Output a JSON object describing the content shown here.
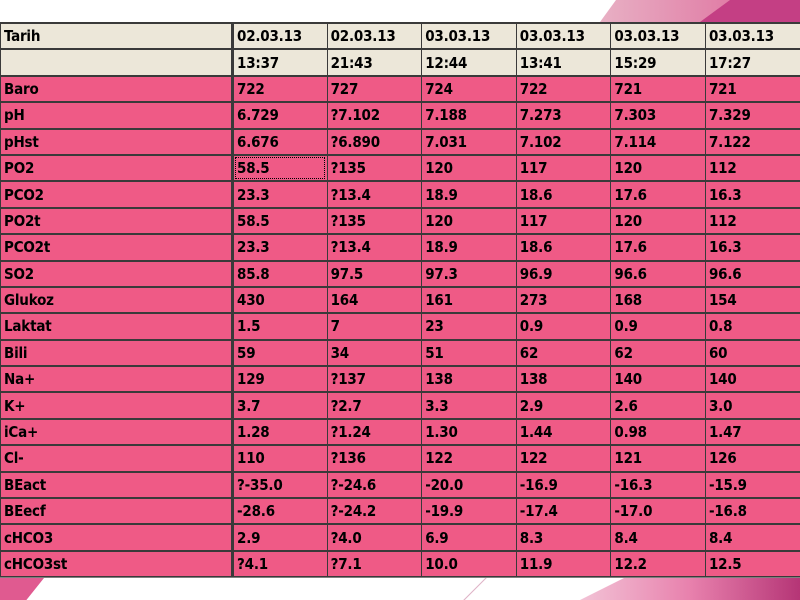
{
  "table": {
    "header": {
      "label": "Tarih",
      "dates": [
        "02.03.13",
        "02.03.13",
        "03.03.13",
        "03.03.13",
        "03.03.13",
        "03.03.13"
      ],
      "times": [
        "13:37",
        "21:43",
        "12:44",
        "13:41",
        "15:29",
        "17:27"
      ]
    },
    "rows": [
      {
        "label": "Baro",
        "values": [
          "722",
          "727",
          "724",
          "722",
          "721",
          "721"
        ]
      },
      {
        "label": "pH",
        "values": [
          "6.729",
          "?7.102",
          "7.188",
          "7.273",
          "7.303",
          "7.329"
        ]
      },
      {
        "label": "pHst",
        "values": [
          "6.676",
          "?6.890",
          "7.031",
          "7.102",
          "7.114",
          "7.122"
        ]
      },
      {
        "label": "PO2",
        "values": [
          "58.5",
          "?135",
          "120",
          "117",
          "120",
          "112"
        ]
      },
      {
        "label": "PCO2",
        "values": [
          "23.3",
          "?13.4",
          "18.9",
          "18.6",
          "17.6",
          "16.3"
        ]
      },
      {
        "label": "PO2t",
        "values": [
          "58.5",
          "?135",
          "120",
          "117",
          "120",
          "112"
        ]
      },
      {
        "label": "PCO2t",
        "values": [
          "23.3",
          "?13.4",
          "18.9",
          "18.6",
          "17.6",
          "16.3"
        ]
      },
      {
        "label": "SO2",
        "values": [
          "85.8",
          "97.5",
          "97.3",
          "96.9",
          "96.6",
          "96.6"
        ]
      },
      {
        "label": "Glukoz",
        "values": [
          "430",
          "164",
          "161",
          "273",
          "168",
          "154"
        ]
      },
      {
        "label": "Laktat",
        "values": [
          "1.5",
          "7",
          "23",
          "0.9",
          "0.9",
          "0.8"
        ]
      },
      {
        "label": "Bili",
        "values": [
          "59",
          "34",
          "51",
          "62",
          "62",
          "60"
        ]
      },
      {
        "label": "Na+",
        "values": [
          "129",
          "?137",
          "138",
          "138",
          "140",
          "140"
        ]
      },
      {
        "label": "K+",
        "values": [
          "3.7",
          "?2.7",
          "3.3",
          "2.9",
          "2.6",
          "3.0"
        ]
      },
      {
        "label": "iCa+",
        "values": [
          "1.28",
          "?1.24",
          "1.30",
          "1.44",
          "0.98",
          "1.47"
        ]
      },
      {
        "label": "Cl-",
        "values": [
          "110",
          "?136",
          "122",
          "122",
          "121",
          "126"
        ]
      },
      {
        "label": "BEact",
        "values": [
          "?-35.0",
          "?-24.6",
          "-20.0",
          "-16.9",
          "-16.3",
          "-15.9"
        ]
      },
      {
        "label": "BEecf",
        "values": [
          "-28.6",
          "?-24.2",
          "-19.9",
          "-17.4",
          "-17.0",
          "-16.8"
        ]
      },
      {
        "label": "cHCO3",
        "values": [
          "2.9",
          "?4.0",
          "6.9",
          "8.3",
          "8.4",
          "8.4"
        ]
      },
      {
        "label": "cHCO3st",
        "values": [
          "?4.1",
          "?7.1",
          "10.0",
          "11.9",
          "12.2",
          "12.5"
        ]
      }
    ]
  },
  "colors": {
    "header_bg": "#ece7d9",
    "cell_bg": "#ef5a86",
    "grid_line": "#3a3a3a",
    "slide_accent": "#c43f84"
  }
}
